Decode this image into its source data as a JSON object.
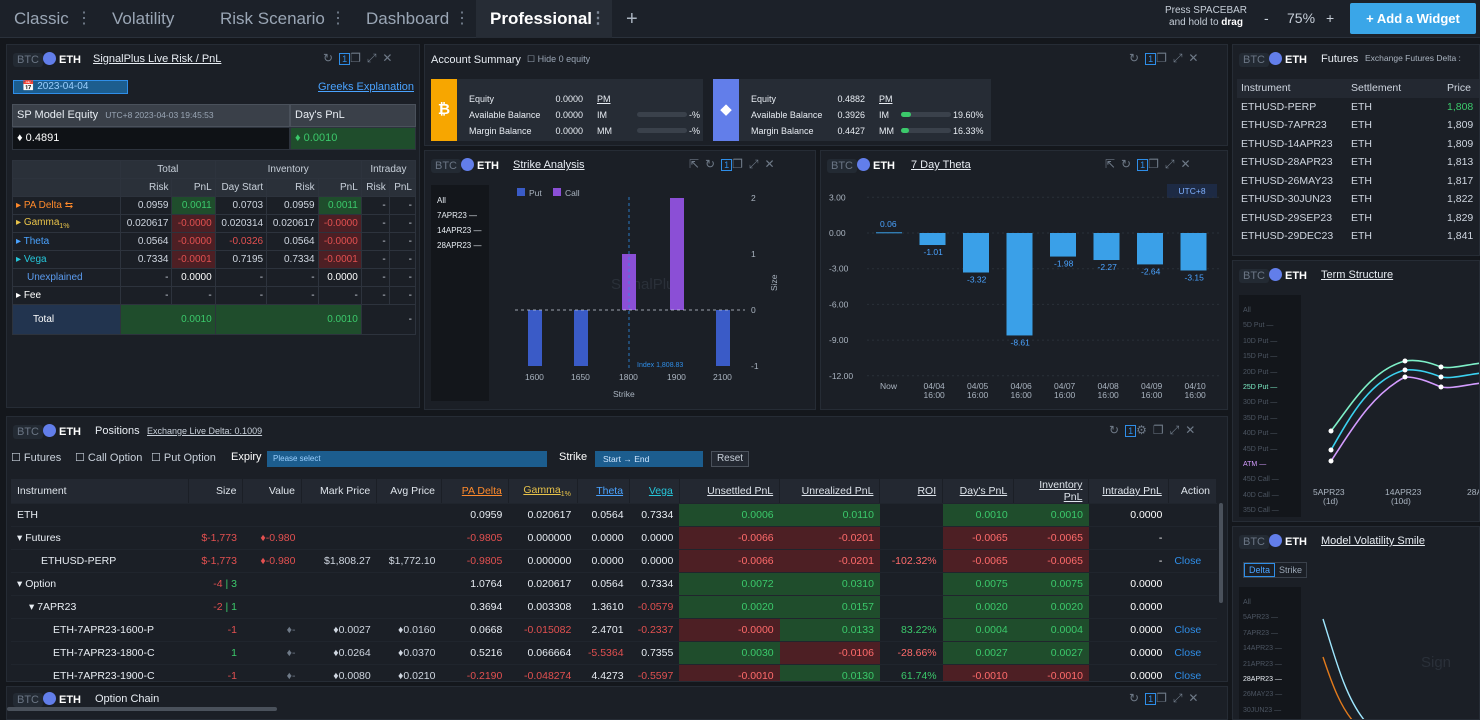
{
  "tabs": [
    {
      "label": "Classic"
    },
    {
      "label": "Volatility"
    },
    {
      "label": "Risk Scenario"
    },
    {
      "label": "Dashboard"
    },
    {
      "label": "Professional"
    }
  ],
  "topbar": {
    "hint_line1": "Press SPACEBAR",
    "hint_line2": "and hold to",
    "hint_bold": "drag",
    "zoom_minus": "-",
    "zoom": "75%",
    "zoom_plus": "+",
    "add_widget": "+ Add a Widget",
    "add_tab": "+"
  },
  "coins": {
    "btc": "BTC",
    "eth": "ETH"
  },
  "risk": {
    "title": "SignalPlus Live Risk / PnL",
    "date": "2023-04-04",
    "greeks_link": "Greeks Explanation",
    "equity_label": "SP Model Equity",
    "equity_time": "UTC+8 2023-04-03 19:45:53",
    "days_pnl_label": "Day's PnL",
    "equity_value": "0.4891",
    "days_pnl_value": "0.0010",
    "groups": [
      "Total",
      "Inventory",
      "Intraday"
    ],
    "subheaders": [
      "Risk",
      "PnL",
      "Day Start",
      "Risk",
      "PnL",
      "Risk",
      "PnL"
    ],
    "rows": [
      {
        "name": "PA Delta",
        "c": [
          "0.0959",
          "0.0011",
          "0.0703",
          "0.0959",
          "0.0011",
          "-",
          "-"
        ]
      },
      {
        "name": "Gamma",
        "sub": "1%",
        "c": [
          "0.020617",
          "-0.0000",
          "0.020314",
          "0.020617",
          "-0.0000",
          "-",
          "-"
        ]
      },
      {
        "name": "Theta",
        "c": [
          "0.0564",
          "-0.0000",
          "-0.0326",
          "0.0564",
          "-0.0000",
          "-",
          "-"
        ]
      },
      {
        "name": "Vega",
        "c": [
          "0.7334",
          "-0.0001",
          "0.7195",
          "0.7334",
          "-0.0001",
          "-",
          "-"
        ]
      },
      {
        "name": "Unexplained",
        "c": [
          "-",
          "0.0000",
          "-",
          "-",
          "0.0000",
          "-",
          "-"
        ]
      },
      {
        "name": "Fee",
        "c": [
          "-",
          "-",
          "-",
          "-",
          "-",
          "-",
          "-"
        ]
      }
    ],
    "total": {
      "name": "Total",
      "pnl": "0.0010",
      "inv_pnl": "0.0010",
      "dash": "-"
    }
  },
  "account": {
    "title": "Account Summary",
    "hide_zero": "Hide 0 equity",
    "cards": [
      {
        "labels": [
          "Equity",
          "Available Balance",
          "Margin Balance"
        ],
        "values": [
          "0.0000",
          "0.0000",
          "0.0000"
        ],
        "pm": "PM",
        "im": "IM",
        "mm": "MM",
        "im_pct": "-%",
        "mm_pct": "-%",
        "accent": "#f7a600"
      },
      {
        "labels": [
          "Equity",
          "Available Balance",
          "Margin Balance"
        ],
        "values": [
          "0.4882",
          "0.3926",
          "0.4427"
        ],
        "pm": "PM",
        "im": "IM",
        "mm": "MM",
        "im_pct": "19.60%",
        "mm_pct": "16.33%",
        "accent": "#627eea"
      }
    ]
  },
  "strike": {
    "title": "Strike Analysis",
    "expiries": [
      "All",
      "7APR23",
      "14APR23",
      "28APR23"
    ],
    "legend": [
      "Put",
      "Call"
    ],
    "xlabel": "Strike",
    "ylabel": "Size",
    "index_label": "Index 1,808.83",
    "watermark": "SignalPlus"
  },
  "chart_data": [
    {
      "type": "bar",
      "title": "Strike Analysis",
      "xlabel": "Strike",
      "ylabel": "Size",
      "categories": [
        "1600",
        "1650",
        "1800",
        "1900",
        "2100"
      ],
      "series": [
        {
          "name": "Put",
          "values": [
            -1,
            -1,
            0,
            0,
            -1
          ]
        },
        {
          "name": "Call",
          "values": [
            0,
            0,
            1,
            2,
            0
          ]
        }
      ],
      "ylim": [
        -1,
        2
      ]
    },
    {
      "type": "bar",
      "title": "7 Day Theta",
      "categories": [
        "Now",
        "04/04 16:00",
        "04/05 16:00",
        "04/06 16:00",
        "04/07 16:00",
        "04/08 16:00",
        "04/09 16:00",
        "04/10 16:00"
      ],
      "values": [
        0.06,
        -1.01,
        -3.32,
        -8.61,
        -1.98,
        -2.27,
        -2.64,
        -3.15
      ],
      "ylim": [
        -12,
        3
      ]
    }
  ],
  "theta": {
    "title": "7 Day Theta",
    "tz": "UTC+8",
    "yticks": [
      "3.00",
      "0.00",
      "-3.00",
      "-6.00",
      "-9.00",
      "-12.00"
    ],
    "xticks": [
      [
        "Now",
        ""
      ],
      [
        "04/04",
        "16:00"
      ],
      [
        "04/05",
        "16:00"
      ],
      [
        "04/06",
        "16:00"
      ],
      [
        "04/07",
        "16:00"
      ],
      [
        "04/08",
        "16:00"
      ],
      [
        "04/09",
        "16:00"
      ],
      [
        "04/10",
        "16:00"
      ]
    ],
    "labels": [
      "0.06",
      "-1.01",
      "-3.32",
      "-8.61",
      "-1.98",
      "-2.27",
      "-2.64",
      "-3.15"
    ]
  },
  "futures": {
    "title": "Futures",
    "delta_label": "Exchange Futures Delta :",
    "headers": [
      "Instrument",
      "Settlement",
      "Price"
    ],
    "rows": [
      [
        "ETHUSD-PERP",
        "ETH",
        "1,808"
      ],
      [
        "ETHUSD-7APR23",
        "ETH",
        "1,809"
      ],
      [
        "ETHUSD-14APR23",
        "ETH",
        "1,809"
      ],
      [
        "ETHUSD-28APR23",
        "ETH",
        "1,813"
      ],
      [
        "ETHUSD-26MAY23",
        "ETH",
        "1,817"
      ],
      [
        "ETHUSD-30JUN23",
        "ETH",
        "1,822"
      ],
      [
        "ETHUSD-29SEP23",
        "ETH",
        "1,829"
      ],
      [
        "ETHUSD-29DEC23",
        "ETH",
        "1,841"
      ]
    ]
  },
  "term": {
    "title": "Term Structure",
    "items": [
      "All",
      "5D Put",
      "10D Put",
      "15D Put",
      "20D Put",
      "25D Put",
      "30D Put",
      "35D Put",
      "40D Put",
      "45D Put",
      "ATM",
      "45D Call",
      "40D Call",
      "35D Call"
    ],
    "xticks": [
      [
        "5APR23",
        "(1d)"
      ],
      [
        "14APR23",
        "(10d)"
      ],
      [
        "28A",
        ""
      ]
    ]
  },
  "smile": {
    "title": "Model Volatility Smile",
    "toggle": [
      "Delta",
      "Strike"
    ],
    "items": [
      "All",
      "5APR23",
      "7APR23",
      "14APR23",
      "21APR23",
      "28APR23",
      "26MAY23",
      "30JUN23"
    ],
    "watermark": "Sign"
  },
  "positions": {
    "title": "Positions",
    "delta": "Exchange Live Delta: 0.1009",
    "filters": [
      "Futures",
      "Call Option",
      "Put Option"
    ],
    "expiry_label": "Expiry",
    "expiry_placeholder": "Please select",
    "strike_label": "Strike",
    "strike_start": "Start",
    "strike_arrow": "→",
    "strike_end": "End",
    "reset": "Reset",
    "headers": [
      "Instrument",
      "Size",
      "Value",
      "Mark Price",
      "Avg Price",
      "PA Delta",
      "Gamma",
      "Theta",
      "Vega",
      "Unsettled PnL",
      "Unrealized PnL",
      "ROI",
      "Day's PnL",
      "Inventory PnL",
      "Intraday PnL",
      "Action"
    ],
    "gamma_sub": "1%",
    "rows": [
      {
        "c": [
          "ETH",
          "",
          "",
          "",
          "",
          "0.0959",
          "0.020617",
          "0.0564",
          "0.7334",
          "0.0006",
          "0.0110",
          "",
          "0.0010",
          "0.0010",
          "0.0000",
          ""
        ],
        "indent": 0
      },
      {
        "c": [
          "▾ Futures",
          "$-1,773",
          "♦-0.980",
          "",
          "",
          "-0.9805",
          "0.000000",
          "0.0000",
          "0.0000",
          "-0.0066",
          "-0.0201",
          "",
          "-0.0065",
          "-0.0065",
          "-",
          ""
        ],
        "indent": 0
      },
      {
        "c": [
          "ETHUSD-PERP",
          "$-1,773",
          "♦-0.980",
          "$1,808.27",
          "$1,772.10",
          "-0.9805",
          "0.000000",
          "0.0000",
          "0.0000",
          "-0.0066",
          "-0.0201",
          "-102.32%",
          "-0.0065",
          "-0.0065",
          "-",
          "Close"
        ],
        "indent": 2
      },
      {
        "c": [
          "▾ Option",
          "-4 | 3",
          "",
          "",
          "",
          "1.0764",
          "0.020617",
          "0.0564",
          "0.7334",
          "0.0072",
          "0.0310",
          "",
          "0.0075",
          "0.0075",
          "0.0000",
          ""
        ],
        "indent": 0
      },
      {
        "c": [
          "▾ 7APR23",
          "-2 | 1",
          "",
          "",
          "",
          "0.3694",
          "0.003308",
          "1.3610",
          "-0.0579",
          "0.0020",
          "0.0157",
          "",
          "0.0020",
          "0.0020",
          "0.0000",
          ""
        ],
        "indent": 1
      },
      {
        "c": [
          "ETH-7APR23-1600-P",
          "-1",
          "♦-",
          "♦0.0027",
          "♦0.0160",
          "0.0668",
          "-0.015082",
          "2.4701",
          "-0.2337",
          "-0.0000",
          "0.0133",
          "83.22%",
          "0.0004",
          "0.0004",
          "0.0000",
          "Close"
        ],
        "indent": 3
      },
      {
        "c": [
          "ETH-7APR23-1800-C",
          "1",
          "♦-",
          "♦0.0264",
          "♦0.0370",
          "0.5216",
          "0.066664",
          "-5.5364",
          "0.7355",
          "0.0030",
          "-0.0106",
          "-28.66%",
          "0.0027",
          "0.0027",
          "0.0000",
          "Close"
        ],
        "indent": 3
      },
      {
        "c": [
          "ETH-7APR23-1900-C",
          "-1",
          "♦-",
          "♦0.0080",
          "♦0.0210",
          "-0.2190",
          "-0.048274",
          "4.4273",
          "-0.5597",
          "-0.0010",
          "0.0130",
          "61.74%",
          "-0.0010",
          "-0.0010",
          "0.0000",
          "Close"
        ],
        "indent": 3
      }
    ]
  },
  "chain": {
    "title": "Option Chain"
  }
}
